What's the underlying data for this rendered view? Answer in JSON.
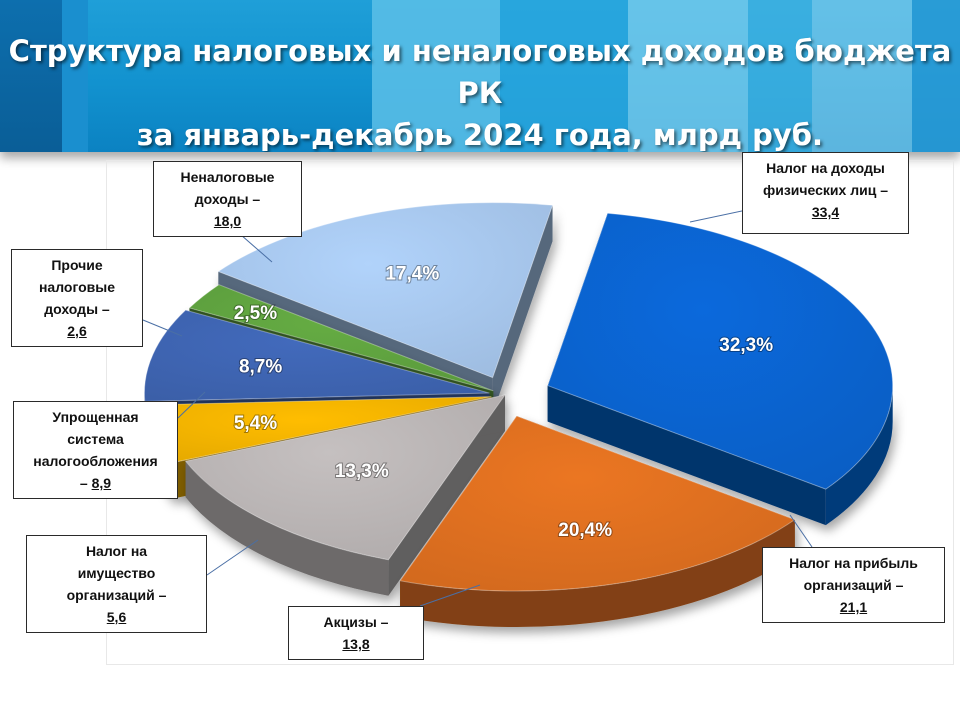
{
  "title": {
    "line1": "Структура налоговых и неналоговых доходов бюджета РК",
    "line2": "за январь-декабрь 2024 года, млрд руб."
  },
  "chart_data": {
    "type": "pie",
    "title": "Структура налоговых и неналоговых доходов бюджета РК за январь-декабрь 2024 года, млрд руб.",
    "unit": "млрд руб.",
    "slices": [
      {
        "label": "Налог на доходы физических лиц",
        "value": 33.4,
        "value_text": "33,4",
        "percent": 32.3,
        "percent_text": "32,3%",
        "color": "#0a5ec4",
        "callout": [
          "Налог на доходы",
          "физических лиц –",
          "33,4"
        ]
      },
      {
        "label": "Налог на прибыль организаций",
        "value": 21.1,
        "value_text": "21,1",
        "percent": 20.4,
        "percent_text": "20,4%",
        "color": "#d2691e",
        "callout": [
          "Налог на прибыль",
          "организаций –",
          "21,1"
        ]
      },
      {
        "label": "Акцизы",
        "value": 13.8,
        "value_text": "13,8",
        "percent": 13.3,
        "percent_text": "13,3%",
        "color": "#b0abab",
        "callout": [
          "Акцизы –",
          "13,8"
        ]
      },
      {
        "label": "Налог на имущество организаций",
        "value": 5.6,
        "value_text": "5,6",
        "percent": 5.4,
        "percent_text": "5,4%",
        "color": "#e5a900",
        "callout": [
          "Налог на",
          "имущество",
          "организаций –",
          "5,6"
        ]
      },
      {
        "label": "Упрощенная система налогообложения",
        "value": 8.9,
        "value_text": "8,9",
        "percent": 8.7,
        "percent_text": "8,7%",
        "color": "#3b5fa8",
        "callout": [
          "Упрощенная",
          "система",
          "налогообложения",
          "– 8,9"
        ]
      },
      {
        "label": "Прочие налоговые доходы",
        "value": 2.6,
        "value_text": "2,6",
        "percent": 2.5,
        "percent_text": "2,5%",
        "color": "#5a9a3c",
        "callout": [
          "Прочие",
          "налоговые",
          "доходы –",
          "2,6"
        ]
      },
      {
        "label": "Неналоговые доходы",
        "value": 18.0,
        "value_text": "18,0",
        "percent": 17.4,
        "percent_text": "17,4%",
        "color": "#9ebce0",
        "callout": [
          "Неналоговые",
          "доходы –",
          "18,0"
        ]
      }
    ]
  }
}
